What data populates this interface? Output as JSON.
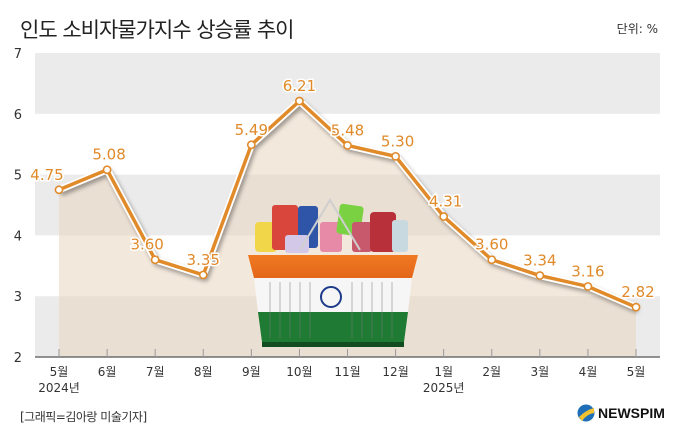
{
  "header": {
    "title": "인도 소비자물가지수 상승률 추이",
    "unit": "단위: %"
  },
  "footer": {
    "credit": "[그래픽=김아랑 미술기자]",
    "logo_text": "NEWSPIM"
  },
  "colors": {
    "line": "#e08a2a",
    "area": "#e9d6c0",
    "band": "#ebebeb",
    "text": "#333333"
  },
  "chart_data": {
    "type": "line",
    "title": "인도 소비자물가지수 상승률 추이",
    "unit": "단위: %",
    "xlabel": "",
    "ylabel": "",
    "ylim": [
      2,
      7
    ],
    "yticks": [
      2,
      3,
      4,
      5,
      6,
      7
    ],
    "categories": [
      "5월",
      "6월",
      "7월",
      "8월",
      "9월",
      "10월",
      "11월",
      "12월",
      "1월",
      "2월",
      "3월",
      "4월",
      "5월"
    ],
    "year_labels": [
      {
        "index": 0,
        "label": "2024년"
      },
      {
        "index": 8,
        "label": "2025년"
      }
    ],
    "series": [
      {
        "name": "인도 소비자물가지수 상승률",
        "values": [
          4.75,
          5.08,
          3.6,
          3.35,
          5.49,
          6.21,
          5.48,
          5.3,
          4.31,
          3.6,
          3.34,
          3.16,
          2.82
        ],
        "labels": [
          "4.75",
          "5.08",
          "3.60",
          "3.35",
          "5.49",
          "6.21",
          "5.48",
          "5.30",
          "4.31",
          "3.60",
          "3.34",
          "3.16",
          "2.82"
        ]
      }
    ],
    "grid": "alternating horizontal bands",
    "legend": "none"
  }
}
